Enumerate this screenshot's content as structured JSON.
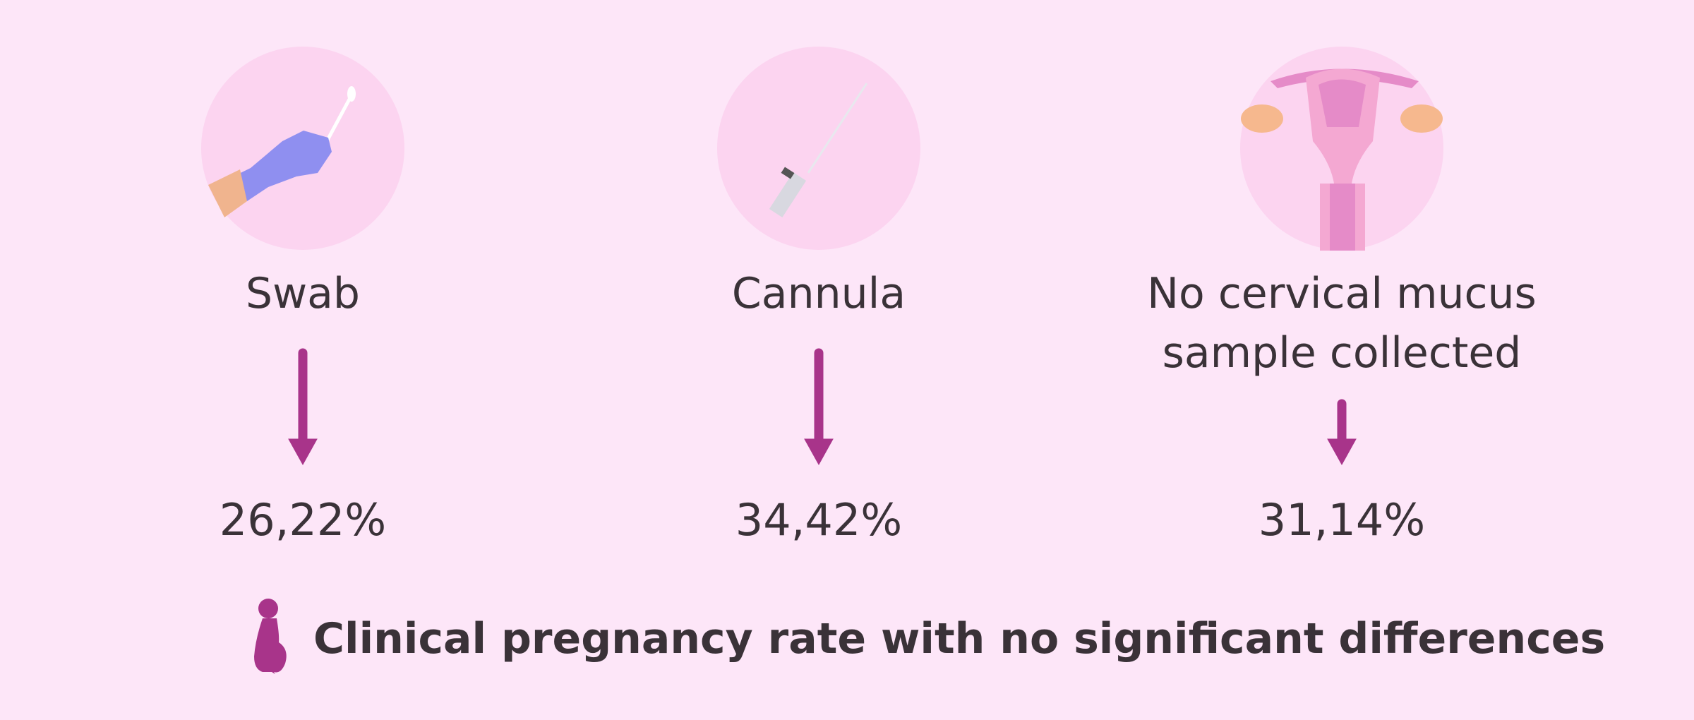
{
  "columns": [
    {
      "label": "Swab",
      "value": "26,22%"
    },
    {
      "label": "Cannula",
      "value": "34,42%"
    },
    {
      "label": "No cervical mucus sample collected",
      "value": "31,14%"
    }
  ],
  "footer": "Clinical pregnancy rate with no significant differences"
}
